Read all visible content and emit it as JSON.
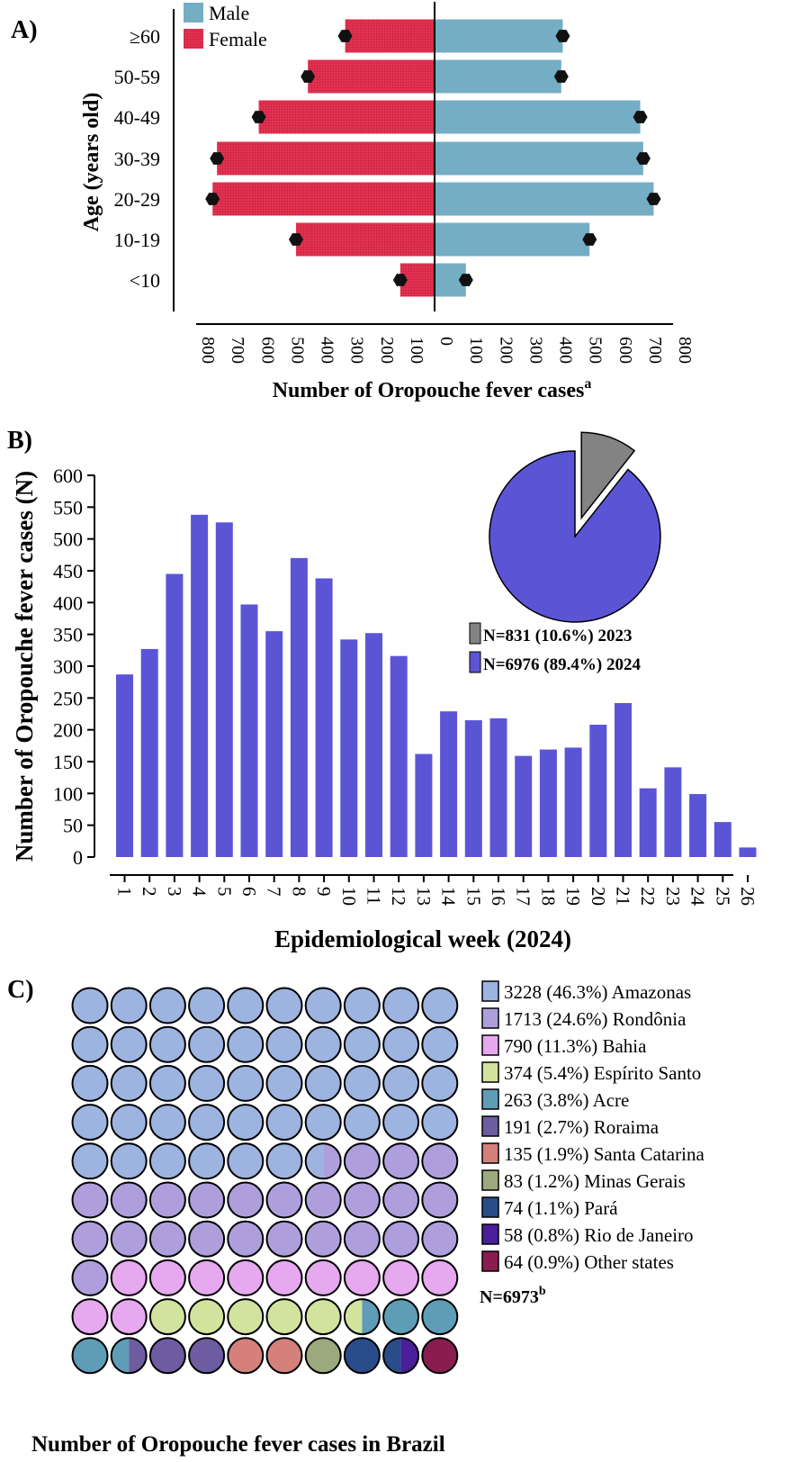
{
  "chart_data": [
    {
      "type": "bar",
      "orientation": "horizontal-population-pyramid",
      "panel_label": "A)",
      "ylabel": "Age (years old)",
      "xlabel": "Number of Oropouche fever cases",
      "xlabel_sup": "a",
      "categories": [
        "≥60",
        "50-59",
        "40-49",
        "30-39",
        "20-29",
        "10-19",
        "<10"
      ],
      "series": [
        {
          "name": "Male",
          "color": "#74adc4",
          "values": [
            430,
            425,
            690,
            700,
            735,
            520,
            105
          ]
        },
        {
          "name": "Female",
          "color": "#e0304f",
          "values": [
            300,
            425,
            590,
            730,
            745,
            465,
            115
          ]
        }
      ],
      "markers": {
        "male": [
          430,
          425,
          690,
          700,
          735,
          520,
          105
        ],
        "female": [
          300,
          425,
          590,
          730,
          745,
          465,
          115
        ]
      },
      "xlim": [
        -800,
        800
      ],
      "xticks": [
        "800",
        "700",
        "600",
        "500",
        "400",
        "300",
        "200",
        "100",
        "0",
        "100",
        "200",
        "300",
        "400",
        "500",
        "600",
        "700",
        "800"
      ],
      "legend_position": "top-left"
    },
    {
      "type": "bar",
      "panel_label": "B)",
      "xlabel": "Epidemiological week (2024)",
      "ylabel": "Number of Oropouche fever cases (N)",
      "categories": [
        "1",
        "2",
        "3",
        "4",
        "5",
        "6",
        "7",
        "8",
        "9",
        "10",
        "11",
        "12",
        "13",
        "14",
        "15",
        "16",
        "17",
        "18",
        "19",
        "20",
        "21",
        "22",
        "23",
        "24",
        "25",
        "26"
      ],
      "values": [
        287,
        327,
        445,
        538,
        526,
        397,
        355,
        470,
        438,
        342,
        352,
        316,
        162,
        229,
        215,
        218,
        159,
        169,
        172,
        208,
        242,
        108,
        141,
        99,
        55,
        15
      ],
      "bar_color": "#5b55d6",
      "ylim": [
        0,
        600
      ],
      "yticks": [
        "0",
        "50",
        "100",
        "150",
        "200",
        "250",
        "300",
        "350",
        "400",
        "450",
        "500",
        "550",
        "600"
      ],
      "inset_pie": {
        "type": "pie",
        "slices": [
          {
            "label": "N=831 (10.6%) 2023",
            "value": 831,
            "color": "#838383",
            "exploded": true
          },
          {
            "label": "N=6976 (89.4%) 2024",
            "value": 6976,
            "color": "#5b55d6"
          }
        ]
      }
    },
    {
      "type": "waffle",
      "panel_label": "C)",
      "title": "Number of Oropouche fever cases in Brazil",
      "grid": {
        "rows": 10,
        "cols": 10
      },
      "categories": [
        {
          "label": "3228 (46.3%) Amazonas",
          "count": 3228,
          "percent": 46.3,
          "color": "#9db3e0"
        },
        {
          "label": "1713 (24.6%) Rondônia",
          "count": 1713,
          "percent": 24.6,
          "color": "#ae9fdc"
        },
        {
          "label": "790 (11.3%) Bahia",
          "count": 790,
          "percent": 11.3,
          "color": "#e6a8ee"
        },
        {
          "label": "374 (5.4%) Espírito Santo",
          "count": 374,
          "percent": 5.4,
          "color": "#d2e39e"
        },
        {
          "label": "263 (3.8%) Acre",
          "count": 263,
          "percent": 3.8,
          "color": "#5e9db6"
        },
        {
          "label": "191 (2.7%) Roraima",
          "count": 191,
          "percent": 2.7,
          "color": "#6d5c9f"
        },
        {
          "label": "135 (1.9%) Santa Catarina",
          "count": 135,
          "percent": 1.9,
          "color": "#d5807b"
        },
        {
          "label": "83 (1.2%) Minas Gerais",
          "count": 83,
          "percent": 1.2,
          "color": "#9ba97c"
        },
        {
          "label": "74 (1.1%) Pará",
          "count": 74,
          "percent": 1.1,
          "color": "#2b4c8a"
        },
        {
          "label": "58 (0.8%) Rio de Janeiro",
          "count": 58,
          "percent": 0.8,
          "color": "#4b1f9a"
        },
        {
          "label": "64 (0.9%) Other states",
          "count": 64,
          "percent": 0.9,
          "color": "#8a1d4f"
        }
      ],
      "cells": [
        [
          0
        ],
        [
          0
        ],
        [
          0
        ],
        [
          0
        ],
        [
          0
        ],
        [
          0
        ],
        [
          0
        ],
        [
          0
        ],
        [
          0
        ],
        [
          0
        ],
        [
          0
        ],
        [
          0
        ],
        [
          0
        ],
        [
          0
        ],
        [
          0
        ],
        [
          0
        ],
        [
          0
        ],
        [
          0
        ],
        [
          0
        ],
        [
          0
        ],
        [
          0
        ],
        [
          0
        ],
        [
          0
        ],
        [
          0
        ],
        [
          0
        ],
        [
          0
        ],
        [
          0
        ],
        [
          0
        ],
        [
          0
        ],
        [
          0
        ],
        [
          0
        ],
        [
          0
        ],
        [
          0
        ],
        [
          0
        ],
        [
          0
        ],
        [
          0
        ],
        [
          0
        ],
        [
          0
        ],
        [
          0
        ],
        [
          0
        ],
        [
          0
        ],
        [
          0
        ],
        [
          0
        ],
        [
          0
        ],
        [
          0
        ],
        [
          0
        ],
        [
          0,
          1
        ],
        [
          1
        ],
        [
          1
        ],
        [
          1
        ],
        [
          1
        ],
        [
          1
        ],
        [
          1
        ],
        [
          1
        ],
        [
          1
        ],
        [
          1
        ],
        [
          1
        ],
        [
          1
        ],
        [
          1
        ],
        [
          1
        ],
        [
          1
        ],
        [
          1
        ],
        [
          1
        ],
        [
          1
        ],
        [
          1
        ],
        [
          1
        ],
        [
          1
        ],
        [
          1
        ],
        [
          1
        ],
        [
          1
        ],
        [
          1
        ],
        [
          2
        ],
        [
          2
        ],
        [
          2
        ],
        [
          2
        ],
        [
          2
        ],
        [
          2
        ],
        [
          2
        ],
        [
          2
        ],
        [
          2
        ],
        [
          2
        ],
        [
          2
        ],
        [
          3
        ],
        [
          3
        ],
        [
          3
        ],
        [
          3
        ],
        [
          3
        ],
        [
          3,
          4
        ],
        [
          4
        ],
        [
          4
        ],
        [
          4
        ],
        [
          4,
          5
        ],
        [
          5
        ],
        [
          5
        ],
        [
          6
        ],
        [
          6
        ],
        [
          7
        ],
        [
          8
        ],
        [
          8,
          9
        ],
        [
          10
        ]
      ],
      "total_label": "N=6973",
      "total_sup": "b"
    }
  ]
}
